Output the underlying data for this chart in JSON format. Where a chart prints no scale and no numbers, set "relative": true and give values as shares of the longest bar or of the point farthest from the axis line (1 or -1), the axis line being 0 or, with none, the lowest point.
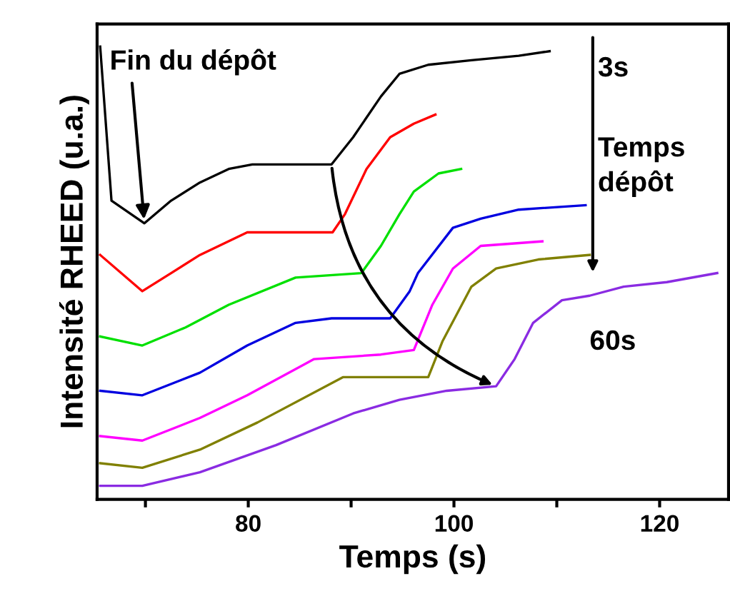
{
  "chart_data": {
    "type": "line",
    "relative": true,
    "xlabel": "Temps (s)",
    "ylabel": "Intensité RHEED (u.a.)",
    "xlim": [
      65.3,
      126.7
    ],
    "xticks": [
      {
        "value": 70,
        "label": null
      },
      80,
      {
        "value": 90,
        "label": null
      },
      100,
      {
        "value": 110,
        "label": null
      },
      120
    ],
    "grid": false,
    "legend": false,
    "marker": "none",
    "line_style": "solid",
    "series": [
      {
        "color": "#000000",
        "x": [
          65.6,
          66.7,
          69.9,
          72.5,
          75.3,
          78.1,
          80.4,
          88.1,
          90.2,
          92.9,
          94.7,
          97.5,
          101.7,
          106.3,
          109.3
        ],
        "values": [
          1.0,
          0.66,
          0.61,
          0.66,
          0.7,
          0.73,
          0.74,
          0.74,
          0.8,
          0.89,
          0.94,
          0.96,
          0.97,
          0.98,
          0.99
        ]
      },
      {
        "color": "#ff0000",
        "x": [
          65.6,
          69.7,
          72.5,
          75.3,
          79.9,
          88.2,
          89.4,
          91.5,
          93.8,
          96.1,
          98.2
        ],
        "values": [
          0.54,
          0.46,
          0.5,
          0.54,
          0.59,
          0.59,
          0.63,
          0.73,
          0.8,
          0.83,
          0.85
        ]
      },
      {
        "color": "#00e000",
        "x": [
          65.6,
          69.7,
          73.9,
          78.1,
          84.6,
          91.0,
          92.9,
          94.7,
          96.1,
          98.5,
          100.7
        ],
        "values": [
          0.36,
          0.34,
          0.38,
          0.43,
          0.49,
          0.5,
          0.56,
          0.63,
          0.68,
          0.72,
          0.73
        ]
      },
      {
        "color": "#0000e0",
        "x": [
          65.6,
          69.7,
          75.3,
          79.9,
          84.6,
          88.1,
          93.8,
          95.7,
          96.5,
          99.9,
          102.6,
          106.3,
          112.8
        ],
        "values": [
          0.24,
          0.23,
          0.28,
          0.34,
          0.39,
          0.4,
          0.4,
          0.46,
          0.5,
          0.6,
          0.62,
          0.64,
          0.65
        ]
      },
      {
        "color": "#ff00ff",
        "x": [
          65.6,
          69.7,
          75.3,
          79.9,
          86.4,
          92.9,
          96.1,
          97.9,
          99.9,
          102.6,
          108.6
        ],
        "values": [
          0.14,
          0.13,
          0.18,
          0.23,
          0.31,
          0.32,
          0.33,
          0.43,
          0.51,
          0.56,
          0.57
        ]
      },
      {
        "color": "#808000",
        "x": [
          65.6,
          69.7,
          75.3,
          80.9,
          89.2,
          94.7,
          97.5,
          98.9,
          101.7,
          104.1,
          108.2,
          113.2
        ],
        "values": [
          0.08,
          0.07,
          0.11,
          0.17,
          0.27,
          0.27,
          0.27,
          0.35,
          0.47,
          0.51,
          0.53,
          0.54
        ]
      },
      {
        "color": "#8a2be2",
        "x": [
          65.6,
          69.7,
          75.3,
          82.7,
          90.2,
          94.7,
          99.3,
          104.1,
          105.9,
          107.7,
          110.5,
          113.2,
          116.5,
          120.7,
          125.6
        ],
        "values": [
          0.03,
          0.03,
          0.06,
          0.12,
          0.19,
          0.22,
          0.24,
          0.25,
          0.31,
          0.39,
          0.44,
          0.45,
          0.47,
          0.48,
          0.5
        ]
      }
    ],
    "annotations": [
      {
        "text": "Fin du dépôt",
        "x": 69.9,
        "y": 0.61
      },
      "3s",
      "Temps\ndépôt",
      "60s"
    ]
  }
}
